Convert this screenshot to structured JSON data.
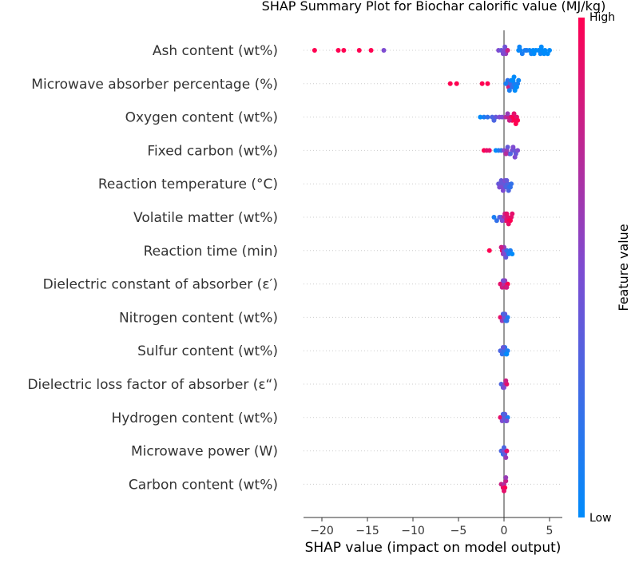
{
  "chart_data": {
    "type": "scatter",
    "subtype": "shap-summary-beeswarm",
    "title": "SHAP Summary Plot for Biochar calorific value (MJ/kg)",
    "xlabel": "SHAP value (impact on model output)",
    "xlim": [
      -22,
      6.5
    ],
    "xticks": [
      -20,
      -15,
      -10,
      -5,
      0,
      5
    ],
    "xtick_labels": [
      "−20",
      "−15",
      "−10",
      "−5",
      "0",
      "5"
    ],
    "colorbar": {
      "title": "Feature value",
      "high_label": "High",
      "low_label": "Low",
      "low_color": "#008bfb",
      "mid_color": "#7e4bd1",
      "high_color": "#ff0051"
    },
    "features": [
      {
        "name": "Ash content (wt%)",
        "points": [
          [
            -20.8,
            1.0
          ],
          [
            -18.2,
            1.0
          ],
          [
            -17.6,
            1.0
          ],
          [
            -15.9,
            1.0
          ],
          [
            -14.6,
            1.0
          ],
          [
            -13.2,
            0.5
          ],
          [
            -0.6,
            0.5
          ],
          [
            -0.3,
            0.4
          ],
          [
            0.0,
            0.5
          ],
          [
            0.2,
            0.6
          ],
          [
            0.4,
            0.8
          ],
          [
            -0.1,
            0.5
          ],
          [
            0.1,
            0.45
          ],
          [
            1.6,
            0.0
          ],
          [
            1.8,
            0.05
          ],
          [
            2.0,
            0.1
          ],
          [
            2.3,
            0.1
          ],
          [
            2.8,
            0.0
          ],
          [
            3.0,
            0.05
          ],
          [
            3.2,
            0.0
          ],
          [
            3.5,
            0.0
          ],
          [
            3.8,
            0.0
          ],
          [
            4.0,
            0.05
          ],
          [
            4.2,
            0.0
          ],
          [
            4.5,
            0.0
          ],
          [
            4.8,
            0.0
          ],
          [
            5.0,
            0.0
          ],
          [
            2.5,
            0.1
          ],
          [
            4.4,
            0.0
          ],
          [
            3.3,
            0.0
          ],
          [
            1.7,
            0.05
          ],
          [
            4.1,
            0.0
          ]
        ]
      },
      {
        "name": "Microwave absorber percentage (%)",
        "points": [
          [
            -5.9,
            1.0
          ],
          [
            -5.2,
            1.0
          ],
          [
            -2.4,
            1.0
          ],
          [
            -1.8,
            1.0
          ],
          [
            0.3,
            0.9
          ],
          [
            0.5,
            0.8
          ],
          [
            0.7,
            0.3
          ],
          [
            0.9,
            0.2
          ],
          [
            1.1,
            0.1
          ],
          [
            1.3,
            0.05
          ],
          [
            1.5,
            0.1
          ],
          [
            0.4,
            0.2
          ],
          [
            0.8,
            0.0
          ],
          [
            1.0,
            0.0
          ],
          [
            1.2,
            0.0
          ],
          [
            1.4,
            0.0
          ],
          [
            0.6,
            0.1
          ],
          [
            1.6,
            0.05
          ],
          [
            0.2,
            0.1
          ],
          [
            1.1,
            0.0
          ]
        ]
      },
      {
        "name": "Oxygen content (wt%)",
        "points": [
          [
            -2.6,
            0.0
          ],
          [
            -2.2,
            0.1
          ],
          [
            -1.8,
            0.2
          ],
          [
            -1.3,
            0.3
          ],
          [
            -0.9,
            0.4
          ],
          [
            -0.5,
            0.5
          ],
          [
            -0.2,
            0.5
          ],
          [
            0.2,
            0.7
          ],
          [
            0.5,
            0.8
          ],
          [
            0.8,
            0.9
          ],
          [
            1.0,
            1.0
          ],
          [
            1.2,
            1.0
          ],
          [
            1.4,
            0.9
          ],
          [
            0.9,
            1.0
          ],
          [
            1.1,
            0.9
          ],
          [
            0.6,
            0.8
          ],
          [
            1.3,
            1.0
          ],
          [
            1.5,
            1.0
          ],
          [
            0.4,
            0.6
          ],
          [
            -1.1,
            0.3
          ]
        ]
      },
      {
        "name": "Fixed carbon (wt%)",
        "points": [
          [
            -2.2,
            1.0
          ],
          [
            -1.9,
            0.9
          ],
          [
            -1.6,
            0.9
          ],
          [
            -0.9,
            0.0
          ],
          [
            -0.6,
            0.1
          ],
          [
            -0.3,
            0.2
          ],
          [
            0.0,
            0.5
          ],
          [
            0.3,
            0.6
          ],
          [
            0.6,
            0.6
          ],
          [
            0.9,
            0.5
          ],
          [
            1.1,
            0.4
          ],
          [
            1.3,
            0.4
          ],
          [
            1.5,
            0.5
          ],
          [
            0.7,
            0.3
          ],
          [
            1.0,
            0.5
          ],
          [
            0.2,
            0.7
          ],
          [
            1.2,
            0.5
          ],
          [
            0.4,
            0.4
          ]
        ]
      },
      {
        "name": "Reaction temperature (°C)",
        "points": [
          [
            -0.6,
            0.4
          ],
          [
            -0.4,
            0.4
          ],
          [
            -0.2,
            0.5
          ],
          [
            0.0,
            0.4
          ],
          [
            0.2,
            0.3
          ],
          [
            0.4,
            0.3
          ],
          [
            0.6,
            0.2
          ],
          [
            0.8,
            0.2
          ],
          [
            -0.5,
            0.5
          ],
          [
            -0.3,
            0.4
          ],
          [
            0.1,
            0.5
          ],
          [
            0.3,
            0.4
          ],
          [
            0.5,
            0.3
          ],
          [
            0.7,
            0.2
          ],
          [
            -0.1,
            0.5
          ]
        ]
      },
      {
        "name": "Volatile matter (wt%)",
        "points": [
          [
            -1.1,
            0.1
          ],
          [
            -0.8,
            0.2
          ],
          [
            -0.5,
            0.3
          ],
          [
            -0.3,
            0.4
          ],
          [
            0.0,
            0.7
          ],
          [
            0.2,
            0.9
          ],
          [
            0.4,
            0.9
          ],
          [
            0.6,
            1.0
          ],
          [
            0.8,
            0.9
          ],
          [
            0.1,
            0.8
          ],
          [
            0.3,
            0.9
          ],
          [
            0.5,
            0.9
          ],
          [
            -0.2,
            0.5
          ],
          [
            0.7,
            1.0
          ],
          [
            0.9,
            0.9
          ]
        ]
      },
      {
        "name": "Reaction time (min)",
        "points": [
          [
            -1.6,
            1.0
          ],
          [
            -0.2,
            0.9
          ],
          [
            -0.1,
            0.6
          ],
          [
            0.0,
            0.5
          ],
          [
            0.1,
            0.5
          ],
          [
            0.3,
            0.2
          ],
          [
            0.5,
            0.1
          ],
          [
            0.7,
            0.1
          ],
          [
            0.9,
            0.0
          ],
          [
            0.0,
            0.6
          ],
          [
            0.2,
            0.4
          ],
          [
            -0.3,
            0.8
          ]
        ]
      },
      {
        "name": "Dielectric constant of absorber (ε′)",
        "points": [
          [
            -0.4,
            0.9
          ],
          [
            -0.2,
            0.8
          ],
          [
            0.0,
            0.7
          ],
          [
            0.2,
            0.9
          ],
          [
            0.4,
            1.0
          ],
          [
            0.1,
            0.6
          ],
          [
            -0.1,
            0.5
          ],
          [
            0.3,
            0.8
          ]
        ]
      },
      {
        "name": "Nitrogen content (wt%)",
        "points": [
          [
            -0.4,
            0.9
          ],
          [
            -0.2,
            0.6
          ],
          [
            0.0,
            0.5
          ],
          [
            0.2,
            0.2
          ],
          [
            0.4,
            0.1
          ],
          [
            0.1,
            0.4
          ],
          [
            -0.1,
            0.3
          ],
          [
            0.3,
            0.2
          ]
        ]
      },
      {
        "name": "Sulfur content (wt%)",
        "points": [
          [
            -0.4,
            0.3
          ],
          [
            -0.2,
            0.2
          ],
          [
            0.0,
            0.2
          ],
          [
            0.2,
            0.1
          ],
          [
            0.4,
            0.1
          ],
          [
            0.1,
            0.2
          ],
          [
            -0.1,
            0.4
          ],
          [
            0.3,
            0.0
          ]
        ]
      },
      {
        "name": "Dielectric loss factor of absorber (ε“)",
        "points": [
          [
            -0.3,
            0.3
          ],
          [
            -0.1,
            0.4
          ],
          [
            0.1,
            0.6
          ],
          [
            0.3,
            0.9
          ],
          [
            0.0,
            0.5
          ],
          [
            0.2,
            0.8
          ]
        ]
      },
      {
        "name": "Hydrogen content (wt%)",
        "points": [
          [
            -0.4,
            0.9
          ],
          [
            -0.2,
            0.5
          ],
          [
            0.0,
            0.4
          ],
          [
            0.2,
            0.3
          ],
          [
            0.4,
            0.1
          ],
          [
            0.1,
            0.4
          ],
          [
            -0.1,
            0.3
          ],
          [
            0.3,
            0.5
          ]
        ]
      },
      {
        "name": "Microwave power (W)",
        "points": [
          [
            -0.3,
            0.3
          ],
          [
            -0.1,
            0.2
          ],
          [
            0.0,
            0.5
          ],
          [
            0.1,
            0.4
          ],
          [
            0.3,
            0.9
          ],
          [
            0.0,
            0.3
          ],
          [
            0.2,
            0.6
          ]
        ]
      },
      {
        "name": "Carbon content (wt%)",
        "points": [
          [
            -0.3,
            0.8
          ],
          [
            -0.1,
            0.9
          ],
          [
            0.0,
            0.7
          ],
          [
            0.1,
            1.0
          ],
          [
            0.2,
            0.8
          ],
          [
            0.0,
            0.9
          ],
          [
            0.2,
            0.6
          ]
        ]
      }
    ]
  }
}
